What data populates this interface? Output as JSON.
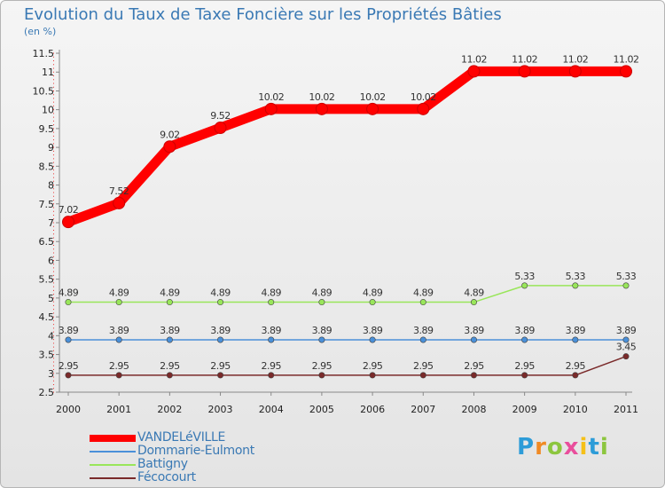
{
  "header": {
    "title": "Evolution du Taux de Taxe Foncière sur les Propriétés Bâties",
    "subtitle": "(en %)"
  },
  "brand": {
    "text": "Proxiti",
    "letters": [
      "P",
      "r",
      "o",
      "x",
      "i",
      "t",
      "i"
    ],
    "colors": [
      "#2d9cd8",
      "#f08a24",
      "#8cc63e",
      "#e94e9c",
      "#f5c018",
      "#2d9cd8",
      "#8cc63e"
    ]
  },
  "chart_data": {
    "type": "line",
    "title": "Evolution du Taux de Taxe Foncière sur les Propriétés Bâties",
    "ylabel": "(en %)",
    "xlabel": "",
    "x": [
      "2000",
      "2001",
      "2002",
      "2003",
      "2004",
      "2005",
      "2006",
      "2007",
      "2008",
      "2009",
      "2010",
      "2011"
    ],
    "ylim": [
      2.5,
      11.5
    ],
    "yticks": [
      "2.5",
      "3",
      "3.5",
      "4",
      "4.5",
      "5",
      "5.5",
      "6",
      "6.5",
      "7",
      "7.5",
      "8",
      "8.5",
      "9",
      "9.5",
      "10",
      "10.5",
      "11",
      "11.5"
    ],
    "grid": false,
    "legend": "bottom-left",
    "series": [
      {
        "name": "VANDELéVILLE",
        "color": "#ff0000",
        "values": [
          7.02,
          7.52,
          9.02,
          9.52,
          10.02,
          10.02,
          10.02,
          10.02,
          11.02,
          11.02,
          11.02,
          11.02
        ],
        "labels": [
          "7.02",
          "7.52",
          "9.02",
          "9.52",
          "10.02",
          "10.02",
          "10.02",
          "10.02",
          "11.02",
          "11.02",
          "11.02",
          "11.02"
        ]
      },
      {
        "name": "Dommarie-Eulmont",
        "color": "#4a90d9",
        "values": [
          3.89,
          3.89,
          3.89,
          3.89,
          3.89,
          3.89,
          3.89,
          3.89,
          3.89,
          3.89,
          3.89,
          3.89
        ],
        "labels": [
          "3.89",
          "3.89",
          "3.89",
          "3.89",
          "3.89",
          "3.89",
          "3.89",
          "3.89",
          "3.89",
          "3.89",
          "3.89",
          "3.89"
        ]
      },
      {
        "name": "Battigny",
        "color": "#99e65a",
        "values": [
          4.89,
          4.89,
          4.89,
          4.89,
          4.89,
          4.89,
          4.89,
          4.89,
          4.89,
          5.33,
          5.33,
          5.33
        ],
        "labels": [
          "4.89",
          "4.89",
          "4.89",
          "4.89",
          "4.89",
          "4.89",
          "4.89",
          "4.89",
          "4.89",
          "5.33",
          "5.33",
          "5.33"
        ]
      },
      {
        "name": "Fécocourt",
        "color": "#7a2a2a",
        "values": [
          2.95,
          2.95,
          2.95,
          2.95,
          2.95,
          2.95,
          2.95,
          2.95,
          2.95,
          2.95,
          2.95,
          3.45
        ],
        "labels": [
          "2.95",
          "2.95",
          "2.95",
          "2.95",
          "2.95",
          "2.95",
          "2.95",
          "2.95",
          "2.95",
          "2.95",
          "2.95",
          "3.45"
        ]
      }
    ]
  }
}
